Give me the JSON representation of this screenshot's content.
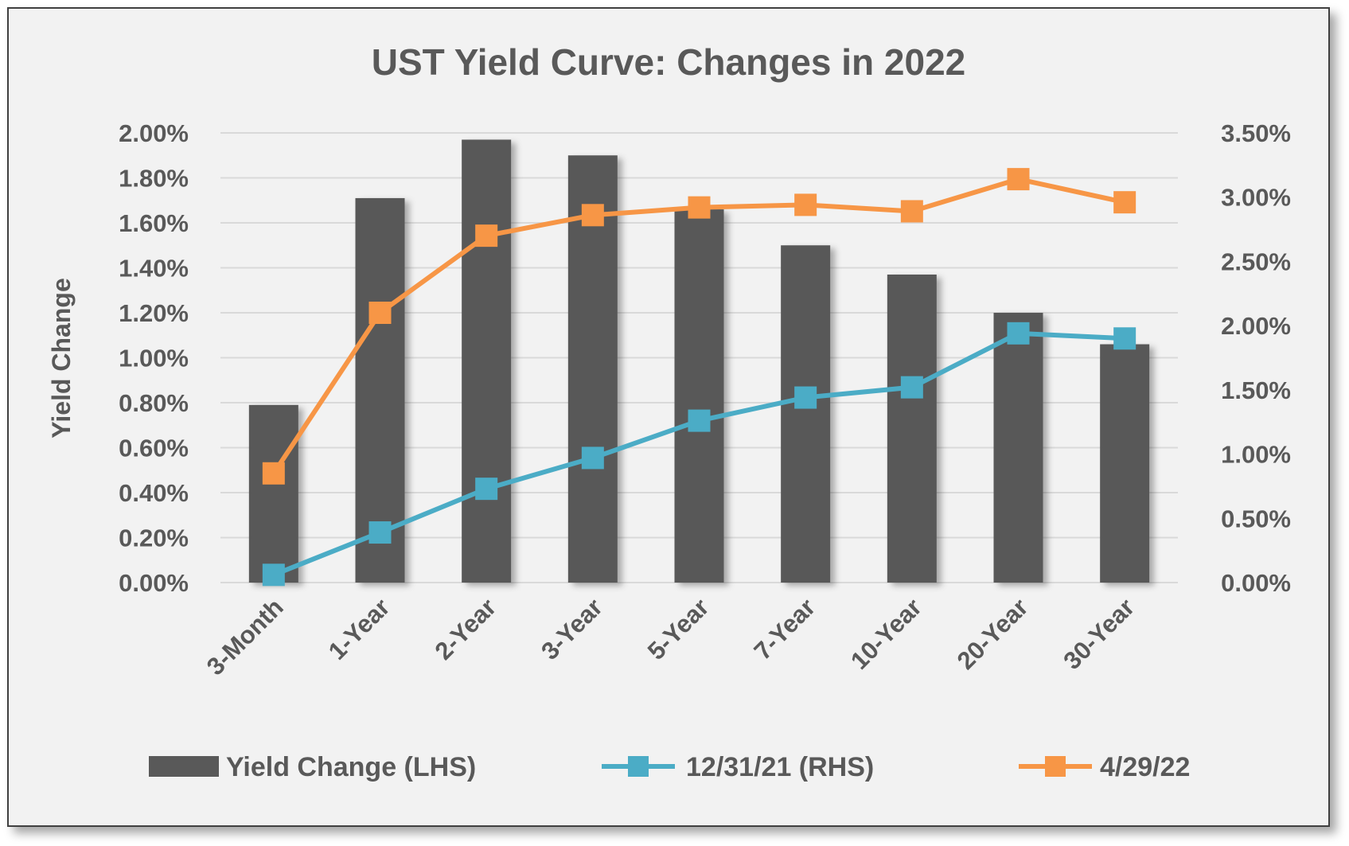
{
  "chart_data": {
    "type": "bar",
    "title": "UST Yield Curve: Changes in 2022",
    "ylabel": "Yield Change",
    "categories": [
      "3-Month",
      "1-Year",
      "2-Year",
      "3-Year",
      "5-Year",
      "7-Year",
      "10-Year",
      "20-Year",
      "30-Year"
    ],
    "left_axis": {
      "ticks": [
        "0.00%",
        "0.20%",
        "0.40%",
        "0.60%",
        "0.80%",
        "1.00%",
        "1.20%",
        "1.40%",
        "1.60%",
        "1.80%",
        "2.00%"
      ],
      "ylim": [
        0,
        2.0
      ]
    },
    "right_axis": {
      "ticks": [
        "0.00%",
        "0.50%",
        "1.00%",
        "1.50%",
        "2.00%",
        "2.50%",
        "3.00%",
        "3.50%"
      ],
      "ylim": [
        0,
        3.5
      ]
    },
    "grid": true,
    "legend_position": "bottom",
    "series": [
      {
        "name": "Yield Change (LHS)",
        "type": "bar",
        "axis": "left",
        "color": "#595959",
        "values": [
          0.79,
          1.71,
          1.97,
          1.9,
          1.66,
          1.5,
          1.37,
          1.2,
          1.06
        ]
      },
      {
        "name": "12/31/21 (RHS)",
        "type": "line",
        "axis": "right",
        "color": "#4bacc6",
        "values": [
          0.06,
          0.39,
          0.73,
          0.97,
          1.26,
          1.44,
          1.52,
          1.94,
          1.9
        ]
      },
      {
        "name": "4/29/22",
        "type": "line",
        "axis": "right",
        "color": "#f79646",
        "values": [
          0.85,
          2.1,
          2.7,
          2.86,
          2.92,
          2.94,
          2.89,
          3.14,
          2.96
        ]
      }
    ]
  }
}
